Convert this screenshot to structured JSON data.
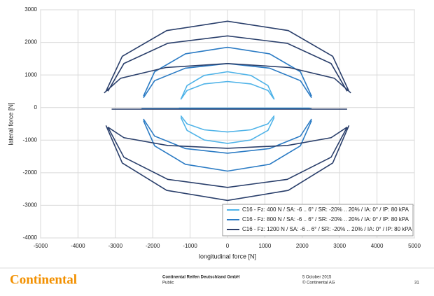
{
  "chart_data": {
    "type": "line",
    "xlabel": "longitudinal force [N]",
    "ylabel": "lateral force [N]",
    "xlim": [
      -5000,
      5000
    ],
    "ylim": [
      -4000,
      3000
    ],
    "xticks": [
      -5000,
      -4000,
      -3000,
      -2000,
      -1000,
      0,
      1000,
      2000,
      3000,
      4000,
      5000
    ],
    "yticks": [
      -4000,
      -3000,
      -2000,
      -1000,
      0,
      1000,
      2000,
      3000
    ],
    "grid": true,
    "legend": "lower right",
    "series": [
      {
        "name": "C16 - Fz: 400 N / SA: -6 .. 6° / SR: -20% .. 20% / IA: 0° / IP: 80 kPA",
        "color": "#4fb3e8",
        "x": [
          -1250,
          -1083,
          -625,
          0,
          625,
          1083,
          1250,
          null,
          -1250,
          -1083,
          -625,
          0,
          625,
          1083,
          1250,
          null,
          -1300,
          2200,
          null,
          -1250,
          -1083,
          -625,
          0,
          625,
          1083,
          1250,
          null,
          -1250,
          -1083,
          -625,
          0,
          625,
          1083,
          1250
        ],
        "values": [
          250,
          675,
          986,
          1100,
          986,
          675,
          250,
          null,
          250,
          525,
          726,
          800,
          726,
          525,
          250,
          null,
          -20,
          -20,
          null,
          -300,
          -700,
          -993,
          -1100,
          -993,
          -700,
          -300,
          null,
          -250,
          -500,
          -683,
          -750,
          -683,
          -500,
          -250
        ]
      },
      {
        "name": "C16 - Fz: 800 N / SA: -6 .. 6° / SR: -20% .. 20% / IA: 0° / IP: 80 kPA",
        "color": "#2b7bc4",
        "x": [
          -2250,
          -1949,
          -1125,
          0,
          1125,
          1949,
          2250,
          null,
          -2250,
          -1949,
          -1125,
          0,
          1125,
          1949,
          2250,
          null,
          -2300,
          2250,
          null,
          -2250,
          -1949,
          -1125,
          0,
          1125,
          1949,
          2250,
          null,
          -2250,
          -1949,
          -1125,
          0,
          1125,
          1949,
          2250
        ],
        "values": [
          350,
          1100,
          1649,
          1850,
          1649,
          1100,
          350,
          null,
          300,
          825,
          1209,
          1350,
          1209,
          825,
          300,
          null,
          -30,
          -30,
          null,
          -400,
          -1175,
          -1742,
          -1950,
          -1742,
          -1175,
          -400,
          null,
          -350,
          -875,
          -1259,
          -1400,
          -1259,
          -875,
          -350
        ]
      },
      {
        "name": "C16 - Fz: 1200 N / SA: -6 .. 6° / SR: -20% .. 20% / IA: 0° / IP: 80 kPA",
        "color": "#2a3f6b",
        "x": [
          -3250,
          -2815,
          -1625,
          0,
          1625,
          2815,
          3250,
          null,
          -3200,
          -2771,
          -1600,
          0,
          1600,
          2771,
          3200,
          null,
          -3300,
          -2858,
          -1650,
          0,
          1650,
          2858,
          3300,
          null,
          -3100,
          3200,
          null,
          -3250,
          -2815,
          -1625,
          0,
          1625,
          2815,
          3250,
          null,
          -3200,
          -2771,
          -1600,
          0,
          1600,
          2771,
          3200,
          null,
          -3200,
          -2771,
          -1600,
          0,
          1600,
          2771,
          3200
        ],
        "values": [
          500,
          1575,
          2362,
          2650,
          2362,
          1575,
          500,
          null,
          500,
          1350,
          1972,
          2200,
          1972,
          1350,
          500,
          null,
          450,
          900,
          1229,
          1350,
          1229,
          900,
          450,
          null,
          -50,
          -50,
          null,
          -550,
          -1700,
          -2542,
          -2850,
          -2542,
          -1700,
          -550,
          null,
          -600,
          -1525,
          -2202,
          -2450,
          -2202,
          -1525,
          -600,
          null,
          -600,
          -925,
          -1163,
          -1250,
          -1163,
          -925,
          -600
        ]
      }
    ]
  },
  "footer": {
    "logo": "Continental",
    "company": "Continental Reifen Deutschland GmbH",
    "classification": "Public",
    "date": "5 October 2015",
    "copyright": "© Continental AG",
    "page": "31"
  }
}
